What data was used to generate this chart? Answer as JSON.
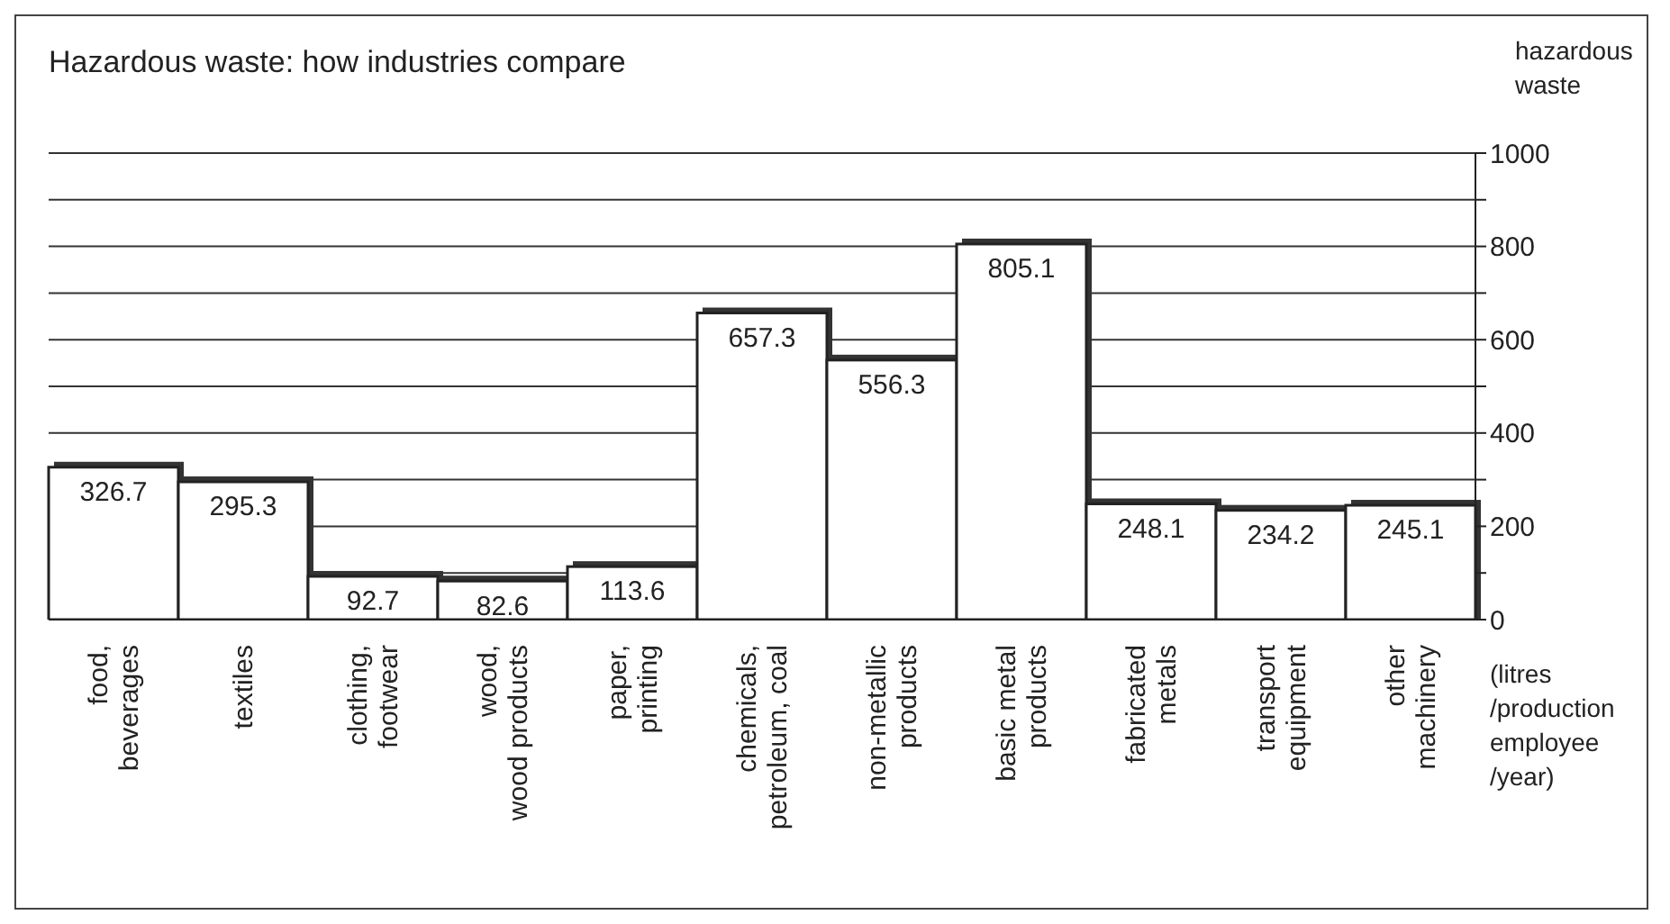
{
  "chart_data": {
    "type": "bar",
    "title": "Hazardous waste: how industries compare",
    "ylabel": "hazardous waste",
    "annotations": [
      "(litres /production employee /year)"
    ],
    "categories": [
      "food, beverages",
      "textiles",
      "clothing, footwear",
      "wood, wood products",
      "paper, printing",
      "chemicals, petroleum, coal",
      "non-metallic products",
      "basic metal products",
      "fabricated metals",
      "transport equipment",
      "other machinery"
    ],
    "values": [
      326.7,
      295.3,
      92.7,
      82.6,
      113.6,
      657.3,
      556.3,
      805.1,
      248.1,
      234.2,
      245.1
    ],
    "color": "#ffffff",
    "data_labels": true,
    "grid": "y",
    "legend": false,
    "ylim": [
      0,
      1000
    ],
    "yticks": [
      0,
      {
        "value": 100,
        "label": null
      },
      200,
      {
        "value": 300,
        "label": null
      },
      400,
      {
        "value": 500,
        "label": null
      },
      600,
      {
        "value": 700,
        "label": null
      },
      800,
      {
        "value": 900,
        "label": null
      },
      1000
    ]
  }
}
